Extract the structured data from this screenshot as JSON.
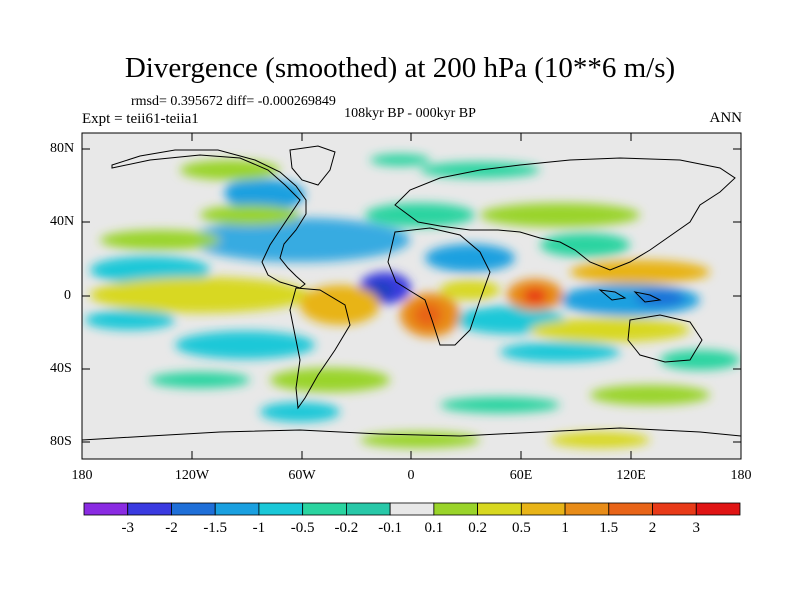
{
  "title": "Divergence (smoothed) at 200 hPa (10**6 m/s)",
  "stats": "rmsd= 0.395672 diff= -0.000269849",
  "experiment": "Expt = teii61-teiia1",
  "period": "108kyr BP - 000kyr BP",
  "season": "ANN",
  "lat_labels": [
    "80N",
    "40N",
    "0",
    "40S",
    "80S"
  ],
  "lon_labels": [
    "180",
    "120W",
    "60W",
    "0",
    "60E",
    "120E",
    "180"
  ],
  "colorbar": {
    "labels": [
      "-3",
      "-2",
      "-1.5",
      "-1",
      "-0.5",
      "-0.2",
      "-0.1",
      "0.1",
      "0.2",
      "0.5",
      "1",
      "1.5",
      "2",
      "3"
    ],
    "colors": [
      "#8a2be2",
      "#3a3ae0",
      "#1f6fd8",
      "#1aa0e0",
      "#1ac8d8",
      "#2ad4a0",
      "#e8e8e8",
      "#9ad42a",
      "#d8d820",
      "#e8b418",
      "#e88c18",
      "#e86418",
      "#e83a18",
      "#e01414"
    ]
  },
  "chart_data": {
    "type": "heatmap",
    "variable": "Divergence (smoothed) at 200 hPa",
    "units": "10**6 m/s",
    "xlim": [
      -180,
      180
    ],
    "ylim": [
      -90,
      90
    ],
    "colorbar_levels": [
      -3,
      -2,
      -1.5,
      -1,
      -0.5,
      -0.2,
      -0.1,
      0.1,
      0.2,
      0.5,
      1,
      1.5,
      2,
      3
    ]
  }
}
